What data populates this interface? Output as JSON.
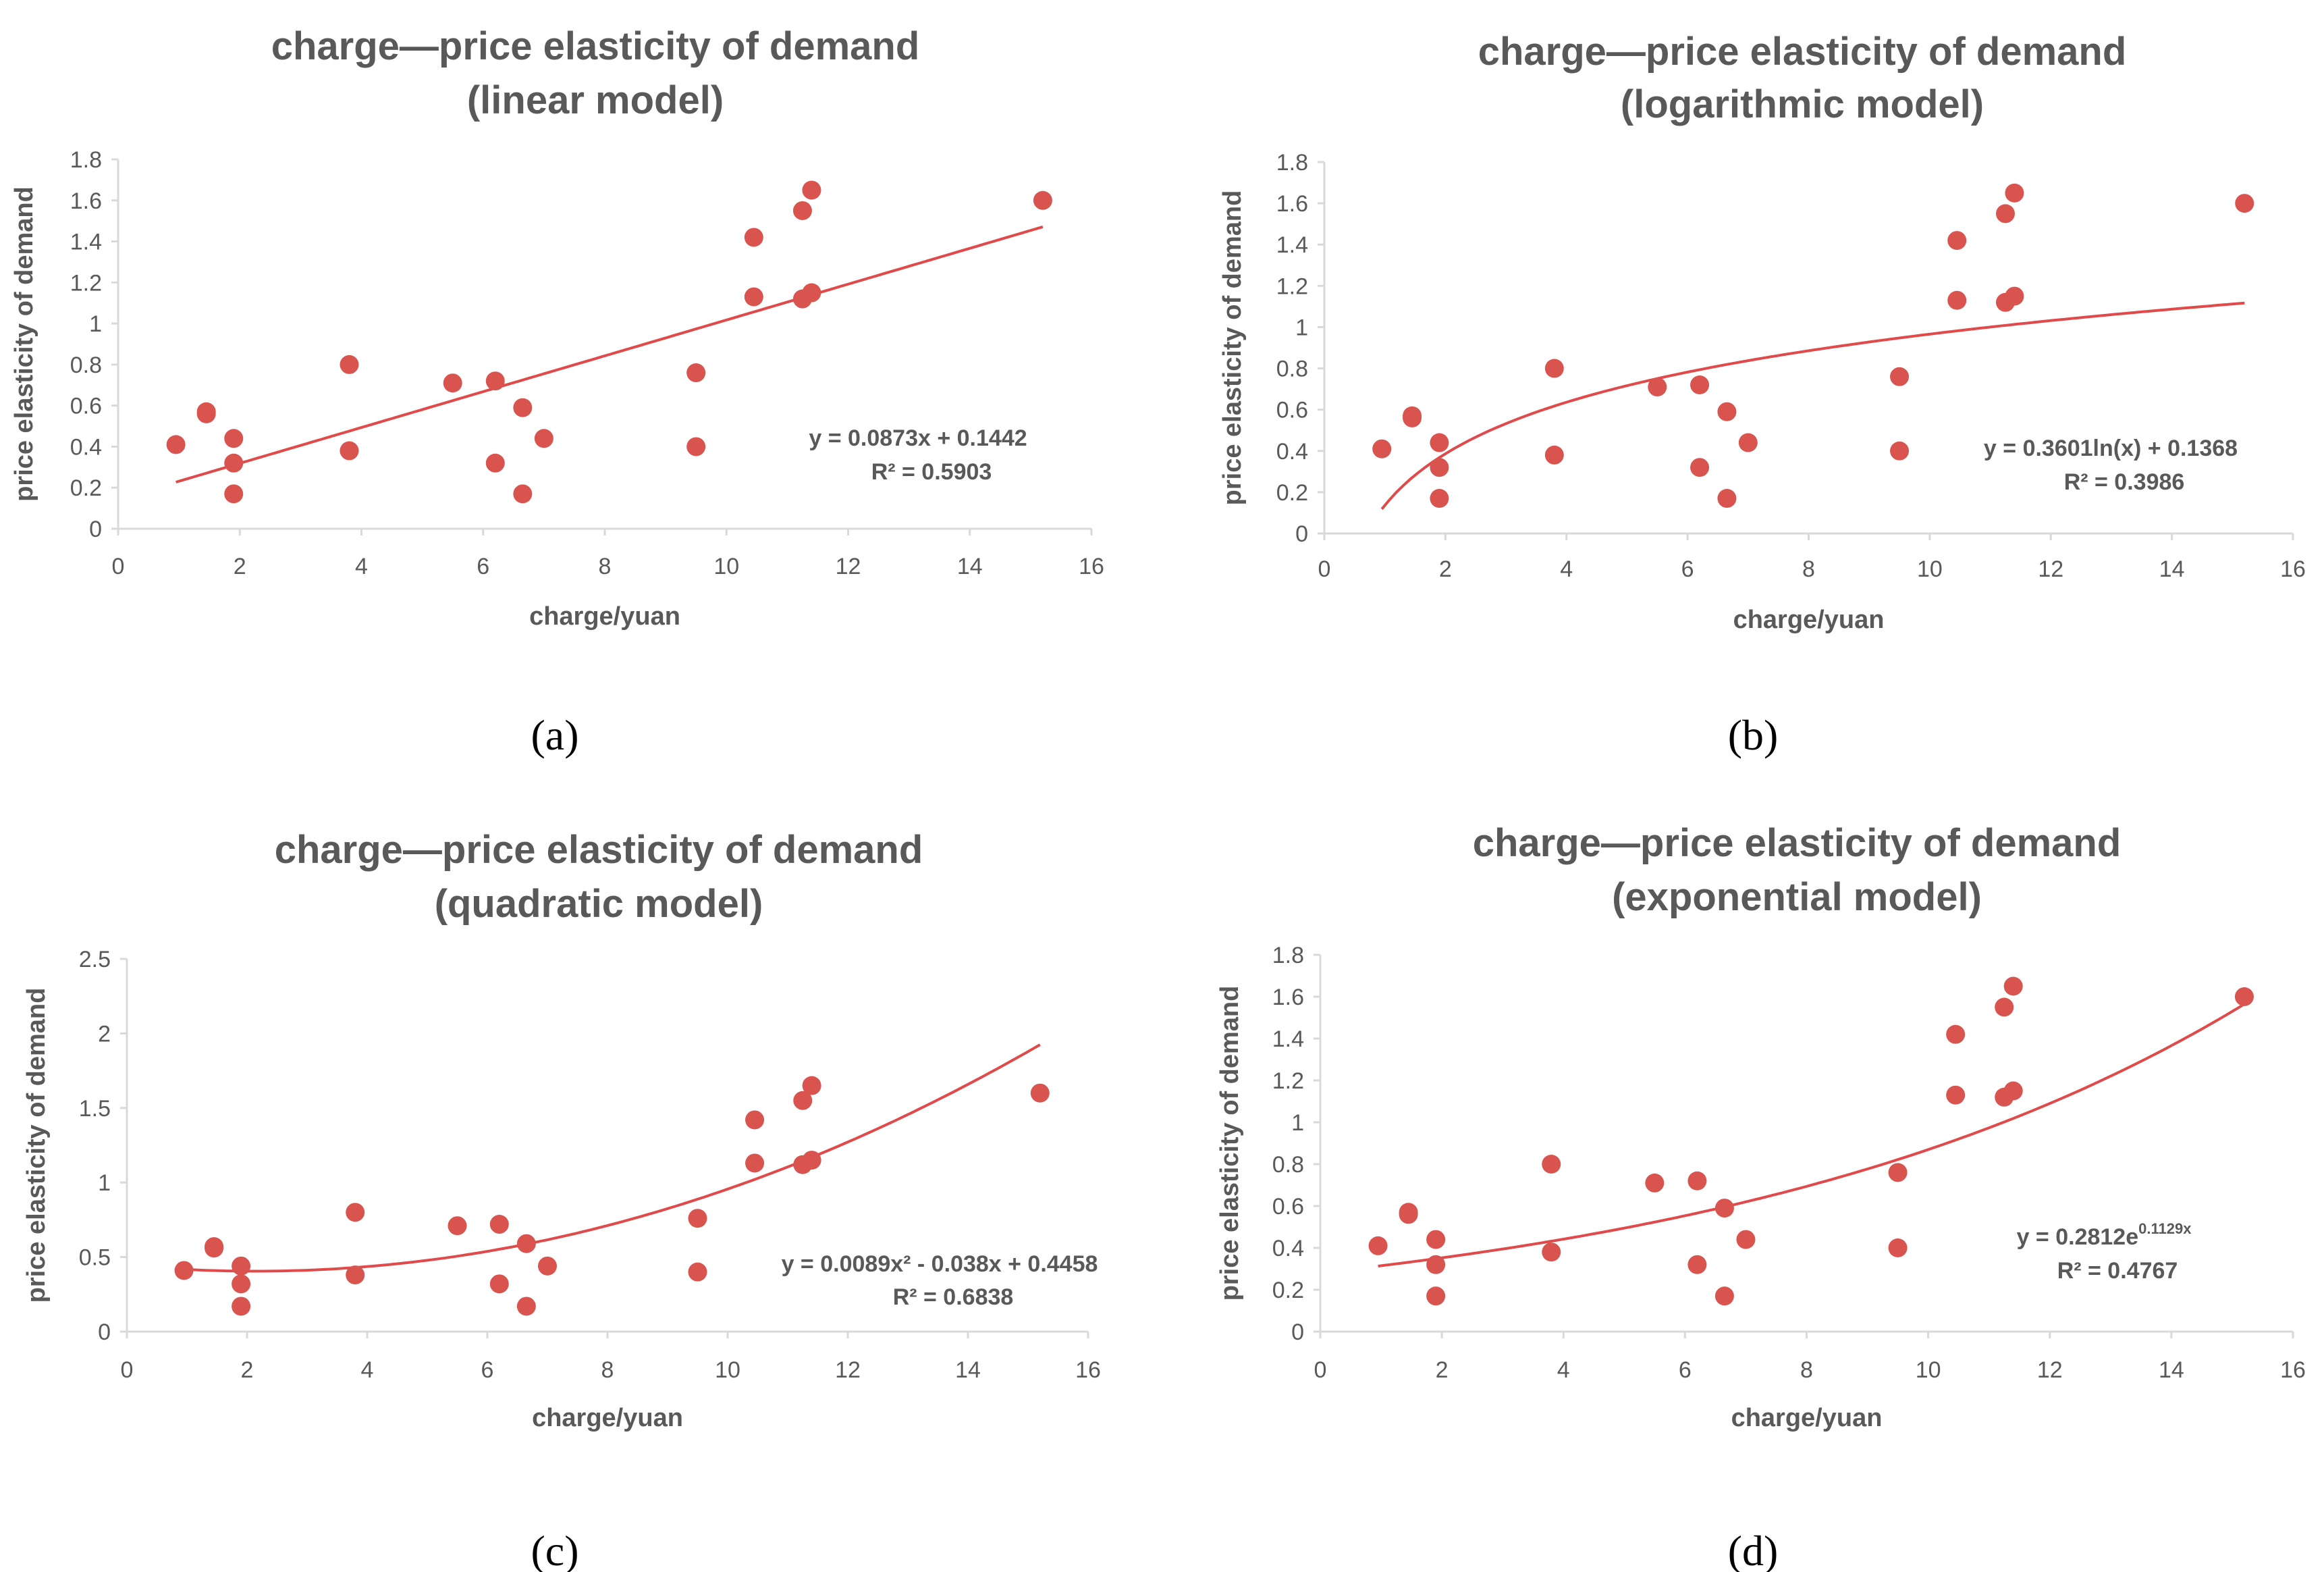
{
  "style": {
    "point_color": "#D9534F",
    "line_color": "#E04A4A",
    "axis_color": "#D9D9D9",
    "text_color": "#595959"
  },
  "chart_data": [
    {
      "type": "scatter",
      "panel": "a",
      "caption": "(a)",
      "title_line1": "charge—price elasticity of demand",
      "title_line2": "(linear model)",
      "xlabel": "charge/yuan",
      "ylabel": "price elasticity of demand",
      "xlim": [
        0,
        16
      ],
      "ylim": [
        0,
        1.8
      ],
      "xticks": [
        0,
        2,
        4,
        6,
        8,
        10,
        12,
        14,
        16
      ],
      "yticks": [
        0,
        0.2,
        0.4,
        0.6,
        0.8,
        1,
        1.2,
        1.4,
        1.6,
        1.8
      ],
      "y_tick_labels": [
        "0",
        "0.2",
        "0.4",
        "0.6",
        "0.8",
        "1",
        "1.2",
        "1.4",
        "1.6",
        "1.8"
      ],
      "fit": {
        "kind": "linear",
        "a": 0.0873,
        "b": 0.1442,
        "x_from": 0.95,
        "x_to": 15.2
      },
      "equation": "y = 0.0873x + 0.1442",
      "r_squared": "R² = 0.5903",
      "points": [
        {
          "x": 0.95,
          "y": 0.41
        },
        {
          "x": 1.45,
          "y": 0.56
        },
        {
          "x": 1.45,
          "y": 0.57
        },
        {
          "x": 1.9,
          "y": 0.44
        },
        {
          "x": 1.9,
          "y": 0.32
        },
        {
          "x": 1.9,
          "y": 0.17
        },
        {
          "x": 3.8,
          "y": 0.8
        },
        {
          "x": 3.8,
          "y": 0.38
        },
        {
          "x": 5.5,
          "y": 0.71
        },
        {
          "x": 6.2,
          "y": 0.72
        },
        {
          "x": 6.2,
          "y": 0.32
        },
        {
          "x": 6.65,
          "y": 0.59
        },
        {
          "x": 6.65,
          "y": 0.17
        },
        {
          "x": 7.0,
          "y": 0.44
        },
        {
          "x": 9.5,
          "y": 0.76
        },
        {
          "x": 9.5,
          "y": 0.4
        },
        {
          "x": 10.45,
          "y": 1.42
        },
        {
          "x": 10.45,
          "y": 1.13
        },
        {
          "x": 11.25,
          "y": 1.55
        },
        {
          "x": 11.25,
          "y": 1.12
        },
        {
          "x": 11.4,
          "y": 1.65
        },
        {
          "x": 11.4,
          "y": 1.15
        },
        {
          "x": 15.2,
          "y": 1.6
        }
      ]
    },
    {
      "type": "scatter",
      "panel": "b",
      "caption": "(b)",
      "title_line1": "charge—price elasticity of demand",
      "title_line2": "(logarithmic model)",
      "xlabel": "charge/yuan",
      "ylabel": "price elasticity of demand",
      "xlim": [
        0,
        16
      ],
      "ylim": [
        0,
        1.8
      ],
      "xticks": [
        0,
        2,
        4,
        6,
        8,
        10,
        12,
        14,
        16
      ],
      "yticks": [
        0,
        0.2,
        0.4,
        0.6,
        0.8,
        1,
        1.2,
        1.4,
        1.6,
        1.8
      ],
      "y_tick_labels": [
        "0",
        "0.2",
        "0.4",
        "0.6",
        "0.8",
        "1",
        "1.2",
        "1.4",
        "1.6",
        "1.8"
      ],
      "fit": {
        "kind": "log",
        "a": 0.3601,
        "b": 0.1368,
        "x_from": 0.95,
        "x_to": 15.2
      },
      "equation": "y = 0.3601ln(x) + 0.1368",
      "r_squared": "R² = 0.3986",
      "points": [
        {
          "x": 0.95,
          "y": 0.41
        },
        {
          "x": 1.45,
          "y": 0.56
        },
        {
          "x": 1.45,
          "y": 0.57
        },
        {
          "x": 1.9,
          "y": 0.44
        },
        {
          "x": 1.9,
          "y": 0.32
        },
        {
          "x": 1.9,
          "y": 0.17
        },
        {
          "x": 3.8,
          "y": 0.8
        },
        {
          "x": 3.8,
          "y": 0.38
        },
        {
          "x": 5.5,
          "y": 0.71
        },
        {
          "x": 6.2,
          "y": 0.72
        },
        {
          "x": 6.2,
          "y": 0.32
        },
        {
          "x": 6.65,
          "y": 0.59
        },
        {
          "x": 6.65,
          "y": 0.17
        },
        {
          "x": 7.0,
          "y": 0.44
        },
        {
          "x": 9.5,
          "y": 0.76
        },
        {
          "x": 9.5,
          "y": 0.4
        },
        {
          "x": 10.45,
          "y": 1.42
        },
        {
          "x": 10.45,
          "y": 1.13
        },
        {
          "x": 11.25,
          "y": 1.55
        },
        {
          "x": 11.25,
          "y": 1.12
        },
        {
          "x": 11.4,
          "y": 1.65
        },
        {
          "x": 11.4,
          "y": 1.15
        },
        {
          "x": 15.2,
          "y": 1.6
        }
      ]
    },
    {
      "type": "scatter",
      "panel": "c",
      "caption": "(c)",
      "title_line1": "charge—price elasticity of demand",
      "title_line2": "(quadratic model)",
      "xlabel": "charge/yuan",
      "ylabel": "price elasticity of demand",
      "xlim": [
        0,
        16
      ],
      "ylim": [
        0,
        2.5
      ],
      "xticks": [
        0,
        2,
        4,
        6,
        8,
        10,
        12,
        14,
        16
      ],
      "yticks": [
        0,
        0.5,
        1,
        1.5,
        2,
        2.5
      ],
      "y_tick_labels": [
        "0",
        "0.5",
        "1",
        "1.5",
        "2",
        "2.5"
      ],
      "fit": {
        "kind": "quadratic",
        "a": 0.0089,
        "b": -0.038,
        "c": 0.4458,
        "x_from": 0.95,
        "x_to": 15.2
      },
      "equation": "y = 0.0089x² - 0.038x + 0.4458",
      "r_squared": "R² = 0.6838",
      "points": [
        {
          "x": 0.95,
          "y": 0.41
        },
        {
          "x": 1.45,
          "y": 0.56
        },
        {
          "x": 1.45,
          "y": 0.57
        },
        {
          "x": 1.9,
          "y": 0.44
        },
        {
          "x": 1.9,
          "y": 0.32
        },
        {
          "x": 1.9,
          "y": 0.17
        },
        {
          "x": 3.8,
          "y": 0.8
        },
        {
          "x": 3.8,
          "y": 0.38
        },
        {
          "x": 5.5,
          "y": 0.71
        },
        {
          "x": 6.2,
          "y": 0.72
        },
        {
          "x": 6.2,
          "y": 0.32
        },
        {
          "x": 6.65,
          "y": 0.59
        },
        {
          "x": 6.65,
          "y": 0.17
        },
        {
          "x": 7.0,
          "y": 0.44
        },
        {
          "x": 9.5,
          "y": 0.76
        },
        {
          "x": 9.5,
          "y": 0.4
        },
        {
          "x": 10.45,
          "y": 1.42
        },
        {
          "x": 10.45,
          "y": 1.13
        },
        {
          "x": 11.25,
          "y": 1.55
        },
        {
          "x": 11.25,
          "y": 1.12
        },
        {
          "x": 11.4,
          "y": 1.65
        },
        {
          "x": 11.4,
          "y": 1.15
        },
        {
          "x": 15.2,
          "y": 1.6
        }
      ]
    },
    {
      "type": "scatter",
      "panel": "d",
      "caption": "(d)",
      "title_line1": "charge—price elasticity of demand",
      "title_line2": "(exponential model)",
      "xlabel": "charge/yuan",
      "ylabel": "price elasticity of demand",
      "xlim": [
        0,
        16
      ],
      "ylim": [
        0,
        1.8
      ],
      "xticks": [
        0,
        2,
        4,
        6,
        8,
        10,
        12,
        14,
        16
      ],
      "yticks": [
        0,
        0.2,
        0.4,
        0.6,
        0.8,
        1,
        1.2,
        1.4,
        1.6,
        1.8
      ],
      "y_tick_labels": [
        "0",
        "0.2",
        "0.4",
        "0.6",
        "0.8",
        "1",
        "1.2",
        "1.4",
        "1.6",
        "1.8"
      ],
      "fit": {
        "kind": "exp",
        "a": 0.2812,
        "b": 0.1129,
        "x_from": 0.95,
        "x_to": 15.2
      },
      "equation_base": "y = 0.2812e",
      "equation_exponent": "0.1129x",
      "r_squared": "R² = 0.4767",
      "points": [
        {
          "x": 0.95,
          "y": 0.41
        },
        {
          "x": 1.45,
          "y": 0.56
        },
        {
          "x": 1.45,
          "y": 0.57
        },
        {
          "x": 1.9,
          "y": 0.44
        },
        {
          "x": 1.9,
          "y": 0.32
        },
        {
          "x": 1.9,
          "y": 0.17
        },
        {
          "x": 3.8,
          "y": 0.8
        },
        {
          "x": 3.8,
          "y": 0.38
        },
        {
          "x": 5.5,
          "y": 0.71
        },
        {
          "x": 6.2,
          "y": 0.72
        },
        {
          "x": 6.2,
          "y": 0.32
        },
        {
          "x": 6.65,
          "y": 0.59
        },
        {
          "x": 6.65,
          "y": 0.17
        },
        {
          "x": 7.0,
          "y": 0.44
        },
        {
          "x": 9.5,
          "y": 0.76
        },
        {
          "x": 9.5,
          "y": 0.4
        },
        {
          "x": 10.45,
          "y": 1.42
        },
        {
          "x": 10.45,
          "y": 1.13
        },
        {
          "x": 11.25,
          "y": 1.55
        },
        {
          "x": 11.25,
          "y": 1.12
        },
        {
          "x": 11.4,
          "y": 1.65
        },
        {
          "x": 11.4,
          "y": 1.15
        },
        {
          "x": 15.2,
          "y": 1.6
        }
      ]
    }
  ]
}
